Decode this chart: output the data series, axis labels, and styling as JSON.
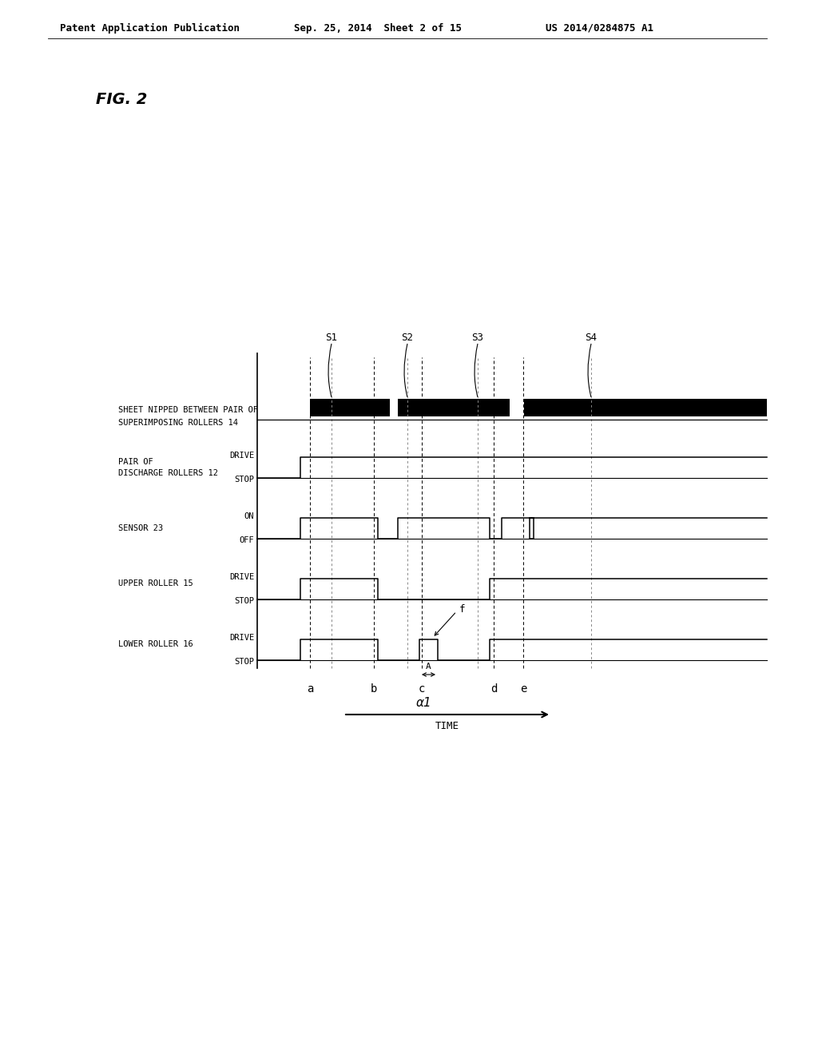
{
  "header_left": "Patent Application Publication",
  "header_mid": "Sep. 25, 2014  Sheet 2 of 15",
  "header_right": "US 2014/0284875 A1",
  "fig_label": "FIG. 2",
  "bg_color": "#ffffff",
  "text_color": "#000000",
  "time_label": "TIME",
  "time_axis_labels": [
    "a",
    "b",
    "c",
    "d",
    "e"
  ],
  "alpha_label": "α1",
  "A_label": "A",
  "f_label": "f",
  "S_labels": [
    "S1",
    "S2",
    "S3",
    "S4"
  ]
}
